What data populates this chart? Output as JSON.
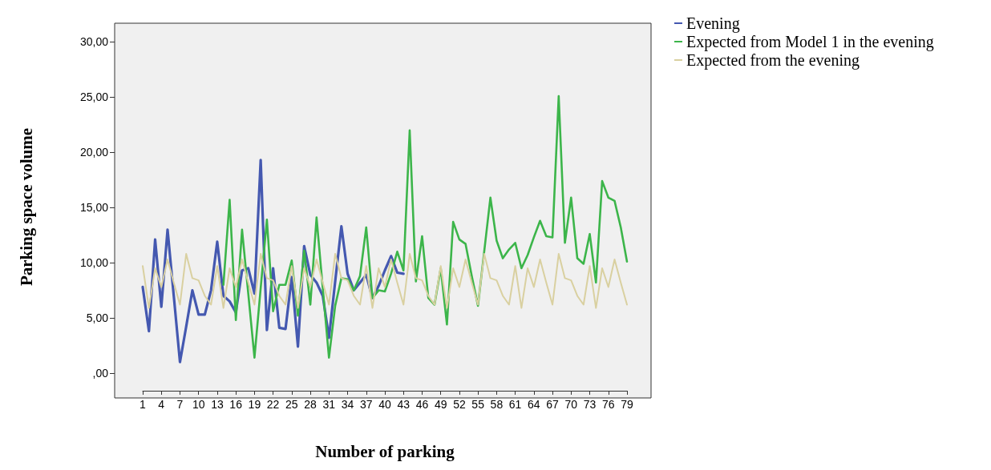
{
  "chart_data": {
    "type": "line",
    "xlabel": "Number of parking",
    "ylabel": "Parking space volume",
    "categories": [
      "1",
      null,
      null,
      "4",
      null,
      null,
      "7",
      null,
      null,
      "10",
      null,
      null,
      "13",
      null,
      null,
      "16",
      null,
      null,
      "19",
      null,
      null,
      "22",
      null,
      null,
      "25",
      null,
      null,
      "28",
      null,
      null,
      "31",
      null,
      null,
      "34",
      null,
      null,
      "37",
      null,
      null,
      "40",
      null,
      null,
      "43",
      null,
      null,
      "46",
      null,
      null,
      "49",
      null,
      null,
      "52",
      null,
      null,
      "55",
      null,
      null,
      "58",
      null,
      null,
      "61",
      null,
      null,
      "64",
      null,
      null,
      "67",
      null,
      null,
      "70",
      null,
      null,
      "73",
      null,
      null,
      "76",
      null,
      null,
      "79"
    ],
    "series": [
      {
        "name": "Evening",
        "color": "#4458b0",
        "values": [
          7.8,
          3.8,
          12.1,
          6.0,
          13.0,
          7.0,
          1.0,
          4.2,
          7.5,
          5.3,
          5.3,
          7.5,
          11.9,
          7.0,
          6.5,
          5.5,
          9.3,
          9.5,
          7.2,
          19.3,
          3.9,
          9.5,
          4.1,
          4.0,
          8.7,
          2.4,
          11.5,
          8.9,
          8.2,
          7.0,
          3.2,
          8.3,
          13.3,
          9.0,
          7.5,
          8.2,
          8.9,
          6.8,
          7.9,
          9.3,
          10.6,
          9.1,
          9.0,
          null,
          null,
          null,
          null,
          null,
          null,
          null,
          null,
          null,
          null,
          null,
          null,
          null,
          null,
          null,
          null,
          null,
          null,
          null,
          null,
          null,
          null,
          null,
          null,
          null,
          null,
          null,
          null,
          null,
          null,
          null,
          null,
          null,
          null,
          null,
          null
        ]
      },
      {
        "name": "Expected from Model 1 in the evening",
        "color": "#3cb54a",
        "values": [
          null,
          null,
          null,
          null,
          null,
          null,
          null,
          null,
          null,
          null,
          null,
          null,
          null,
          8.0,
          15.7,
          4.8,
          13.0,
          7.2,
          1.4,
          7.7,
          13.9,
          5.6,
          8.0,
          8.0,
          10.2,
          5.2,
          11.1,
          6.2,
          14.1,
          7.7,
          1.4,
          6.1,
          8.6,
          8.5,
          7.5,
          8.8,
          13.2,
          6.8,
          7.5,
          7.4,
          9.0,
          11.0,
          9.3,
          22.0,
          8.3,
          12.4,
          6.8,
          6.2,
          9.5,
          4.4,
          13.7,
          12.1,
          11.7,
          8.8,
          6.1,
          11.0,
          15.9,
          12.0,
          10.4,
          11.2,
          11.8,
          9.5,
          10.7,
          12.3,
          13.8,
          12.4,
          12.3,
          25.1,
          11.8,
          15.9,
          10.4,
          9.9,
          12.6,
          8.2,
          17.4,
          15.9,
          15.6,
          13.2,
          10.1
        ]
      },
      {
        "name": "Expected from the evening",
        "color": "#d9d0a0",
        "values": [
          9.7,
          5.9,
          9.5,
          7.8,
          10.3,
          8.2,
          6.2,
          10.8,
          8.6,
          8.4,
          7.0,
          6.2,
          9.7,
          5.9,
          9.5,
          7.8,
          10.3,
          8.2,
          6.2,
          10.8,
          8.6,
          8.4,
          7.0,
          6.2,
          9.7,
          5.9,
          9.5,
          7.8,
          10.3,
          8.2,
          6.2,
          10.8,
          8.6,
          8.4,
          7.0,
          6.2,
          9.7,
          5.9,
          9.5,
          7.8,
          10.3,
          8.2,
          6.2,
          10.8,
          8.6,
          8.4,
          7.0,
          6.2,
          9.7,
          5.9,
          9.5,
          7.8,
          10.3,
          8.2,
          6.2,
          10.8,
          8.6,
          8.4,
          7.0,
          6.2,
          9.7,
          5.9,
          9.5,
          7.8,
          10.3,
          8.2,
          6.2,
          10.8,
          8.6,
          8.4,
          7.0,
          6.2,
          9.7,
          5.9,
          9.5,
          7.8,
          10.3,
          8.2,
          6.2
        ]
      }
    ],
    "ylim": [
      -1.6,
      31.7
    ],
    "yticks": [
      {
        "value": 0,
        "label": ",00"
      },
      {
        "value": 5,
        "label": "5,00"
      },
      {
        "value": 10,
        "label": "10,00"
      },
      {
        "value": 15,
        "label": "15,00"
      },
      {
        "value": 20,
        "label": "20,00"
      },
      {
        "value": 25,
        "label": "25,00"
      },
      {
        "value": 30,
        "label": "30,00"
      }
    ],
    "legend": "top right"
  }
}
